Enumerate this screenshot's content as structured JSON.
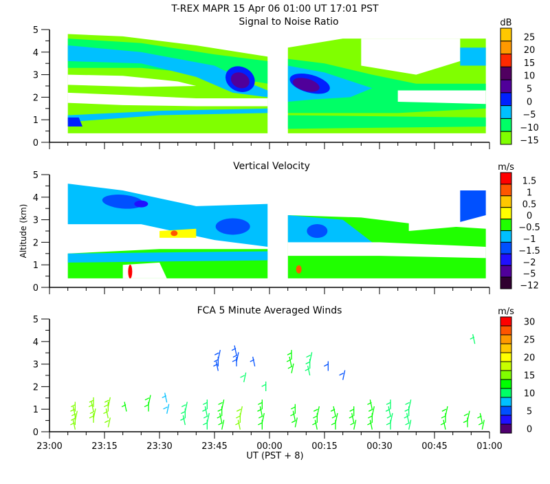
{
  "title": "T-REX  MAPR 15 Apr 06  01:00 UT  17:01  PST",
  "xlabel": "UT  (PST + 8)",
  "x_ticks": [
    "23:00",
    "23:15",
    "23:30",
    "23:45",
    "00:00",
    "00:15",
    "00:30",
    "00:45",
    "01:00"
  ],
  "chart_data": [
    {
      "type": "heatmap",
      "title": "Signal to Noise Ratio",
      "ylabel": "",
      "ylim": [
        0,
        5
      ],
      "y_ticks": [
        "0",
        "1",
        "2",
        "3",
        "4",
        "5"
      ],
      "xlim": [
        "23:00",
        "01:00"
      ],
      "colorbar": {
        "unit": "dB",
        "labels": [
          "25",
          "20",
          "15",
          "10",
          "5",
          "0",
          "-5",
          "-10",
          "-15"
        ],
        "colors": [
          "#ffc800",
          "#ff9900",
          "#ff2a00",
          "#500060",
          "#50009a",
          "#0020ff",
          "#00c0ff",
          "#00ff66",
          "#80ff00"
        ]
      }
    },
    {
      "type": "heatmap",
      "title": "Vertical Velocity",
      "ylabel": "Altitude (km)",
      "ylim": [
        0,
        5
      ],
      "y_ticks": [
        "0",
        "1",
        "2",
        "3",
        "4",
        "5"
      ],
      "xlim": [
        "23:00",
        "01:00"
      ],
      "colorbar": {
        "unit": "m/s",
        "labels": [
          "1.5",
          "1",
          "0.5",
          "0",
          "-0.5",
          "-1",
          "-1.5",
          "-2",
          "-5",
          "-12"
        ],
        "colors": [
          "#ff0000",
          "#ff5500",
          "#ffc800",
          "#ffff00",
          "#20ff00",
          "#00c0ff",
          "#0050ff",
          "#2010ff",
          "#50009a",
          "#300030"
        ]
      }
    },
    {
      "type": "scatter",
      "title": "FCA 5 Minute Averaged Winds",
      "ylabel": "",
      "ylim": [
        0,
        5
      ],
      "y_ticks": [
        "0",
        "1",
        "2",
        "3",
        "4",
        "5"
      ],
      "xlim": [
        "23:00",
        "01:00"
      ],
      "colorbar": {
        "unit": "m/s",
        "labels": [
          "30",
          "25",
          "20",
          "15",
          "10",
          "5",
          "0"
        ],
        "colors": [
          "#ff0000",
          "#ff5500",
          "#ff9900",
          "#ffc800",
          "#ffff00",
          "#c8ff00",
          "#80ff00",
          "#00ff00",
          "#00ff66",
          "#00c0ff",
          "#0050ff",
          "#2010ff",
          "#500070"
        ]
      },
      "winds": [
        {
          "time": "23:07",
          "alts": [
            0.1,
            0.3,
            0.5,
            0.7,
            0.9
          ],
          "speed": 15
        },
        {
          "time": "23:12",
          "alts": [
            0.4,
            0.6,
            0.9,
            1.1
          ],
          "speed": 15
        },
        {
          "time": "23:16",
          "alts": [
            0.2,
            0.6,
            0.9,
            1.1
          ],
          "speed": 14
        },
        {
          "time": "23:21",
          "alts": [
            0.9
          ],
          "speed": 13
        },
        {
          "time": "23:27",
          "alts": [
            0.9,
            1.2
          ],
          "speed": 13
        },
        {
          "time": "23:32",
          "alts": [
            0.8,
            1.3
          ],
          "speed": 8
        },
        {
          "time": "23:37",
          "alts": [
            0.3,
            0.6,
            0.9
          ],
          "speed": 11
        },
        {
          "time": "23:43",
          "alts": [
            0.1,
            0.4,
            0.7,
            1.0
          ],
          "speed": 10
        },
        {
          "time": "23:47",
          "alts": [
            0.1,
            0.4,
            0.7,
            1.0
          ],
          "speed": 13
        },
        {
          "time": "23:52",
          "alts": [
            0.1,
            0.4,
            0.7
          ],
          "speed": 14
        },
        {
          "time": "23:58",
          "alts": [
            0.1,
            0.4,
            0.7,
            1.0
          ],
          "speed": 13
        },
        {
          "time": "00:07",
          "alts": [
            0.2,
            0.5,
            0.8
          ],
          "speed": 12
        },
        {
          "time": "00:13",
          "alts": [
            0.1,
            0.4,
            0.7
          ],
          "speed": 12
        },
        {
          "time": "00:18",
          "alts": [
            0.1,
            0.4,
            0.7
          ],
          "speed": 12
        },
        {
          "time": "00:23",
          "alts": [
            0.1,
            0.4,
            0.7
          ],
          "speed": 12
        },
        {
          "time": "00:28",
          "alts": [
            0.1,
            0.4,
            0.7,
            1.0
          ],
          "speed": 13
        },
        {
          "time": "00:33",
          "alts": [
            0.1,
            0.4,
            0.7,
            1.0
          ],
          "speed": 11
        },
        {
          "time": "00:38",
          "alts": [
            0.1,
            0.4,
            0.7,
            1.0
          ],
          "speed": 9
        },
        {
          "time": "00:48",
          "alts": [
            0.1,
            0.4,
            0.7
          ],
          "speed": 12
        },
        {
          "time": "00:54",
          "alts": [
            0.2,
            0.5
          ],
          "speed": 13
        },
        {
          "time": "00:58",
          "alts": [
            0.1,
            0.4
          ],
          "speed": 12
        },
        {
          "time": "23:46",
          "alts": [
            2.7,
            2.9,
            3.2
          ],
          "speed": 6
        },
        {
          "time": "23:51",
          "alts": [
            2.9,
            3.1,
            3.4
          ],
          "speed": 6
        },
        {
          "time": "23:53",
          "alts": [
            2.2
          ],
          "speed": 9
        },
        {
          "time": "23:56",
          "alts": [
            2.9
          ],
          "speed": 5
        },
        {
          "time": "23:59",
          "alts": [
            1.8
          ],
          "speed": 9
        },
        {
          "time": "00:06",
          "alts": [
            2.6,
            2.9,
            3.2
          ],
          "speed": 12
        },
        {
          "time": "00:11",
          "alts": [
            2.5,
            2.8,
            3.1
          ],
          "speed": 11
        },
        {
          "time": "00:16",
          "alts": [
            2.7
          ],
          "speed": 6
        },
        {
          "time": "00:20",
          "alts": [
            2.3
          ],
          "speed": 6
        },
        {
          "time": "00:56",
          "alts": [
            3.9
          ],
          "speed": 11
        }
      ]
    }
  ]
}
